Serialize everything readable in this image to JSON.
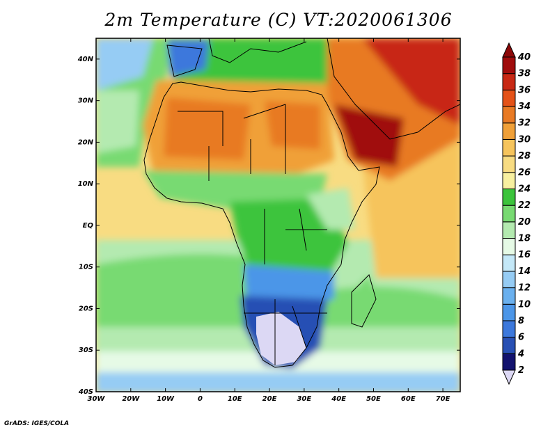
{
  "title": "2m Temperature (C) VT:2020061306",
  "credit": "GrADS: IGES/COLA",
  "map": {
    "lon_range": [
      -30,
      75
    ],
    "lat_range": [
      -40,
      45
    ],
    "lat_ticks": [
      {
        "value": 40,
        "label": "40N"
      },
      {
        "value": 30,
        "label": "30N"
      },
      {
        "value": 20,
        "label": "20N"
      },
      {
        "value": 10,
        "label": "10N"
      },
      {
        "value": 0,
        "label": "EQ"
      },
      {
        "value": -10,
        "label": "10S"
      },
      {
        "value": -20,
        "label": "20S"
      },
      {
        "value": -30,
        "label": "30S"
      },
      {
        "value": -40,
        "label": "40S"
      }
    ],
    "lon_ticks": [
      {
        "value": -30,
        "label": "30W"
      },
      {
        "value": -20,
        "label": "20W"
      },
      {
        "value": -10,
        "label": "10W"
      },
      {
        "value": 0,
        "label": "0"
      },
      {
        "value": 10,
        "label": "10E"
      },
      {
        "value": 20,
        "label": "20E"
      },
      {
        "value": 30,
        "label": "30E"
      },
      {
        "value": 40,
        "label": "40E"
      },
      {
        "value": 50,
        "label": "50E"
      },
      {
        "value": 60,
        "label": "60E"
      },
      {
        "value": 70,
        "label": "70E"
      }
    ]
  },
  "colorbar": {
    "levels": [
      "2",
      "4",
      "6",
      "8",
      "10",
      "12",
      "14",
      "16",
      "18",
      "20",
      "22",
      "24",
      "26",
      "28",
      "30",
      "32",
      "34",
      "36",
      "38",
      "40"
    ],
    "colors": [
      "#dcd8f4",
      "#12126e",
      "#2850b4",
      "#3c78dc",
      "#4c96e8",
      "#6ab0ee",
      "#96ccf4",
      "#c4e8f8",
      "#e6fae6",
      "#b4eab0",
      "#78da72",
      "#3cc43c",
      "#f8f0a0",
      "#f8dc82",
      "#f6c45c",
      "#f0a038",
      "#e87a24",
      "#e45218",
      "#c82814",
      "#a00c0c",
      "#8c0808"
    ]
  }
}
